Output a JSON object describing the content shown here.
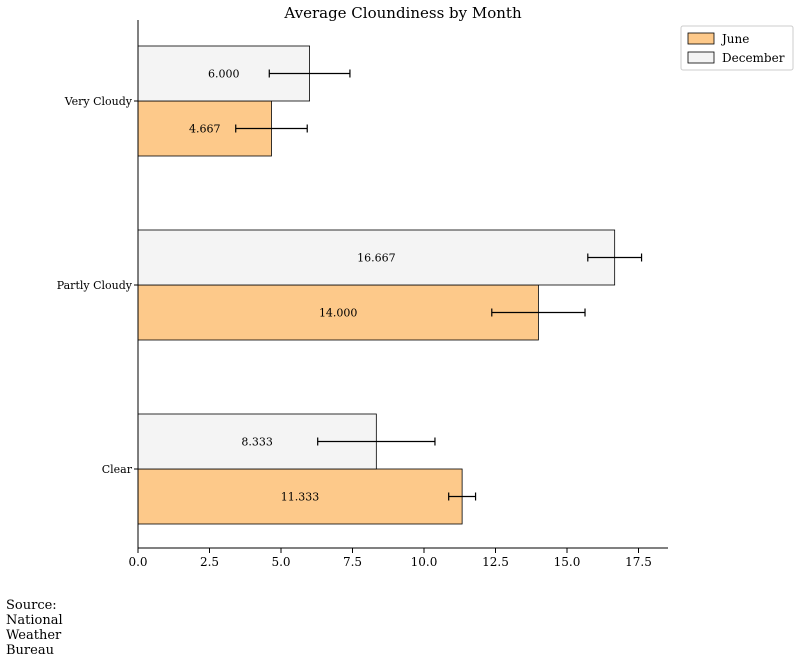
{
  "chart_data": {
    "type": "bar",
    "orientation": "horizontal",
    "title": "Average Cloundiness by Month",
    "xlabel": "",
    "ylabel": "",
    "categories": [
      "Clear",
      "Partly Cloudy",
      "Very Cloudy"
    ],
    "series": [
      {
        "name": "June",
        "values": [
          11.333,
          14.0,
          4.667
        ],
        "errors": [
          0.47,
          1.63,
          1.25
        ],
        "labels": [
          "11.333",
          "14.000",
          "4.667"
        ],
        "color": "#fdc98a"
      },
      {
        "name": "December",
        "values": [
          8.333,
          16.667,
          6.0
        ],
        "errors": [
          2.05,
          0.94,
          1.41
        ],
        "labels": [
          "8.333",
          "16.667",
          "6.000"
        ],
        "color": "#f4f4f4"
      }
    ],
    "xlim": [
      0,
      18.5
    ],
    "xticks": [
      "0.0",
      "2.5",
      "5.0",
      "7.5",
      "10.0",
      "12.5",
      "15.0",
      "17.5"
    ],
    "grid": false,
    "legend_position": "top-right"
  },
  "footnote": "Source: National Weather Bureau"
}
